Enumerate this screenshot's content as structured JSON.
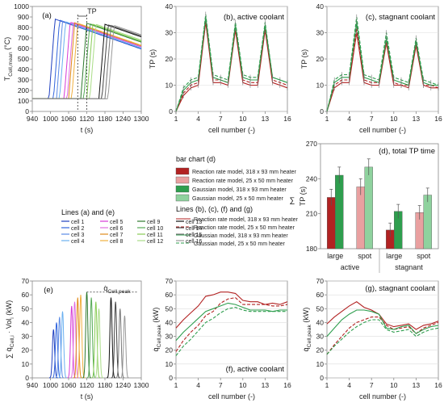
{
  "colors": {
    "red": "#b22222",
    "lightred": "#e9a0a0",
    "green": "#2e9e4e",
    "lightgreen": "#8fd29e"
  },
  "panel_a": {
    "label": "(a)",
    "ylabel_main": "T",
    "ylabel_sub": "Cell,mean",
    "ylabel_unit": " (°C)",
    "xlabel": "t (s)",
    "annotation": "TP",
    "xticks": [
      "940",
      "1000",
      "1060",
      "1120",
      "1180",
      "1240",
      "1300"
    ],
    "yticks": [
      "0",
      "100",
      "200",
      "300",
      "400",
      "500",
      "600",
      "700",
      "800",
      "900",
      "1000"
    ]
  },
  "panel_b": {
    "label": "(b), active coolant",
    "ylabel": "TP (s)",
    "xlabel": "cell number (-)",
    "xticks": [
      "1",
      "4",
      "7",
      "10",
      "13",
      "16"
    ],
    "yticks": [
      "0",
      "10",
      "20",
      "30",
      "40"
    ]
  },
  "panel_c": {
    "label": "(c), stagnant coolant",
    "ylabel": "TP (s)",
    "xlabel": "cell number (-)",
    "xticks": [
      "1",
      "4",
      "7",
      "10",
      "13",
      "16"
    ],
    "yticks": [
      "0",
      "10",
      "20",
      "30",
      "40"
    ]
  },
  "panel_d": {
    "label": "(d), total TP time",
    "ylabel": "TP (s)",
    "sum_symbol": "∑",
    "yticks": [
      "180",
      "210",
      "240",
      "270"
    ],
    "group_labels": [
      "large",
      "spot",
      "large",
      "spot"
    ],
    "coolant_labels": [
      "active",
      "stagnant"
    ]
  },
  "legend_bar": {
    "title": "bar chart (d)",
    "items": [
      "Reaction rate model, 318 x 93 mm heater",
      "Reaction rate model, 25 x 50 mm heater",
      "Gaussian model, 318 x 93 mm heater",
      "Gaussian model, 25 x 50 mm heater"
    ]
  },
  "legend_lines": {
    "title": "Lines (b), (c), (f) and (g)",
    "items": [
      "Reaction rate model, 318 x 93 mm heater",
      "Reaction rate model, 25 x 50 mm heater",
      "Gaussian model, 318 x 93 mm heater",
      "Gaussian model, 25 x 50 mm heater"
    ]
  },
  "legend_cells": {
    "title": "Lines (a) and (e)",
    "items": [
      "cell 1",
      "cell 2",
      "cell 3",
      "cell 4",
      "cell 5",
      "cell 6",
      "cell 7",
      "cell 8",
      "cell 9",
      "cell 10",
      "cell 11",
      "cell 12",
      "cell 13",
      "cell 14",
      "cell 15",
      "cell 16"
    ]
  },
  "panel_e": {
    "label": "(e)",
    "ylabel_main": "∑ q̇",
    "ylabel_sub": "Cell,i",
    "ylabel_rest": " · Vol",
    "ylabel_sub2": "i",
    "ylabel_unit": " (kW)",
    "xlabel": "t (s)",
    "annotation_main": "q̇",
    "annotation_sub": "Cell,peak",
    "xticks": [
      "940",
      "1000",
      "1060",
      "1120",
      "1180",
      "1240",
      "1300"
    ],
    "yticks": [
      "0",
      "10",
      "20",
      "30",
      "40",
      "50",
      "60",
      "70"
    ]
  },
  "panel_f": {
    "label": "(f), active coolant",
    "ylabel_main": "q̇",
    "ylabel_sub": "Cell,peak",
    "ylabel_unit": " (kW)",
    "xlabel": "cell number (-)",
    "xticks": [
      "1",
      "4",
      "7",
      "10",
      "13",
      "16"
    ],
    "yticks": [
      "0",
      "10",
      "20",
      "30",
      "40",
      "50",
      "60",
      "70"
    ]
  },
  "panel_g": {
    "label": "(g), stagnant coolant",
    "ylabel_main": "q̇",
    "ylabel_sub": "Cell,peak",
    "ylabel_unit": " (kW)",
    "xlabel": "cell number (-)",
    "xticks": [
      "1",
      "4",
      "7",
      "10",
      "13",
      "16"
    ],
    "yticks": [
      "0",
      "10",
      "20",
      "30",
      "40",
      "50",
      "60",
      "70"
    ]
  },
  "chart_data": [
    {
      "type": "line",
      "panel": "a",
      "xlim": [
        940,
        1300
      ],
      "ylim": [
        0,
        1000
      ],
      "series_rise_times": [
        1015,
        1030,
        1040,
        1050,
        1065,
        1075,
        1080,
        1090,
        1120,
        1130,
        1140,
        1150,
        1180,
        1190,
        1200,
        1210
      ],
      "peak": [
        880,
        870,
        860,
        855,
        850,
        845,
        845,
        840,
        840,
        835,
        830,
        830,
        830,
        825,
        820,
        820
      ]
    },
    {
      "type": "line",
      "panel": "b",
      "x": [
        1,
        2,
        3,
        4,
        5,
        6,
        7,
        8,
        9,
        10,
        11,
        12,
        13,
        14,
        15,
        16
      ],
      "ylim": [
        0,
        40
      ],
      "series": [
        {
          "values": [
            0,
            6,
            9,
            10,
            34,
            11,
            11,
            10,
            31,
            11,
            10,
            10,
            31,
            11,
            10,
            9
          ]
        },
        {
          "values": [
            0,
            7,
            10,
            11,
            35,
            12,
            12,
            11,
            32,
            12,
            11,
            11,
            32,
            12,
            11,
            10
          ]
        },
        {
          "values": [
            0,
            8,
            11,
            12,
            36,
            13,
            12,
            11,
            33,
            13,
            12,
            12,
            33,
            13,
            12,
            11
          ]
        },
        {
          "values": [
            0,
            9,
            12,
            13,
            37,
            14,
            13,
            12,
            34,
            14,
            13,
            13,
            34,
            13,
            12,
            11
          ]
        }
      ]
    },
    {
      "type": "line",
      "panel": "c",
      "x": [
        1,
        2,
        3,
        4,
        5,
        6,
        7,
        8,
        9,
        10,
        11,
        12,
        13,
        14,
        15,
        16
      ],
      "ylim": [
        0,
        40
      ],
      "series": [
        {
          "values": [
            0,
            9,
            11,
            11,
            30,
            11,
            10,
            10,
            26,
            10,
            10,
            9,
            25,
            10,
            9,
            9
          ]
        },
        {
          "values": [
            0,
            10,
            12,
            12,
            32,
            12,
            11,
            11,
            27,
            11,
            10,
            10,
            26,
            10,
            10,
            9
          ]
        },
        {
          "values": [
            0,
            11,
            13,
            13,
            34,
            13,
            12,
            11,
            28,
            12,
            11,
            10,
            27,
            11,
            10,
            10
          ]
        },
        {
          "values": [
            0,
            12,
            14,
            14,
            36,
            14,
            13,
            12,
            30,
            13,
            12,
            11,
            28,
            12,
            11,
            10
          ]
        }
      ]
    },
    {
      "type": "bar",
      "panel": "d",
      "ylim": [
        180,
        270
      ],
      "categories": [
        "active large",
        "active spot",
        "stagnant large",
        "stagnant spot"
      ],
      "series": [
        {
          "values": [
            224,
            null,
            196,
            null
          ]
        },
        {
          "values": [
            null,
            233,
            null,
            211
          ]
        },
        {
          "values": [
            243,
            null,
            212,
            null
          ]
        },
        {
          "values": [
            null,
            250,
            null,
            226
          ]
        }
      ],
      "errors": [
        7,
        7,
        6,
        6
      ]
    },
    {
      "type": "line",
      "panel": "e",
      "xlim": [
        940,
        1300
      ],
      "ylim": [
        0,
        70
      ],
      "pulse_centers": [
        1010,
        1020,
        1030,
        1040,
        1070,
        1080,
        1090,
        1100,
        1120,
        1135,
        1150,
        1160,
        1200,
        1215,
        1230,
        1245
      ],
      "pulse_peaks": [
        35,
        40,
        44,
        48,
        52,
        55,
        58,
        60,
        62,
        58,
        55,
        50,
        58,
        55,
        50,
        45
      ]
    },
    {
      "type": "line",
      "panel": "f",
      "x": [
        1,
        2,
        3,
        4,
        5,
        6,
        7,
        8,
        9,
        10,
        11,
        12,
        13,
        14,
        15,
        16
      ],
      "ylim": [
        0,
        70
      ],
      "series": [
        {
          "values": [
            36,
            42,
            47,
            52,
            59,
            60,
            62,
            62,
            61,
            56,
            55,
            55,
            53,
            54,
            53,
            55
          ]
        },
        {
          "values": [
            19,
            27,
            33,
            38,
            45,
            48,
            54,
            57,
            58,
            53,
            53,
            53,
            53,
            52,
            52,
            53
          ]
        },
        {
          "values": [
            27,
            33,
            38,
            43,
            48,
            50,
            52,
            54,
            53,
            51,
            49,
            49,
            49,
            48,
            49,
            49
          ]
        },
        {
          "values": [
            16,
            23,
            28,
            34,
            40,
            43,
            47,
            50,
            51,
            49,
            48,
            48,
            48,
            48,
            48,
            48
          ]
        }
      ]
    },
    {
      "type": "line",
      "panel": "g",
      "x": [
        1,
        2,
        3,
        4,
        5,
        6,
        7,
        8,
        9,
        10,
        11,
        12,
        13,
        14,
        15,
        16
      ],
      "ylim": [
        0,
        70
      ],
      "series": [
        {
          "values": [
            39,
            44,
            48,
            52,
            55,
            51,
            49,
            46,
            39,
            37,
            38,
            39,
            35,
            38,
            39,
            41
          ]
        },
        {
          "values": [
            17,
            24,
            30,
            36,
            40,
            42,
            44,
            44,
            38,
            35,
            36,
            37,
            32,
            36,
            38,
            40
          ]
        },
        {
          "values": [
            30,
            36,
            42,
            46,
            49,
            49,
            48,
            46,
            36,
            35,
            37,
            38,
            32,
            35,
            37,
            38
          ]
        },
        {
          "values": [
            17,
            23,
            28,
            33,
            37,
            40,
            42,
            42,
            35,
            33,
            34,
            35,
            30,
            33,
            35,
            36
          ]
        }
      ]
    }
  ]
}
